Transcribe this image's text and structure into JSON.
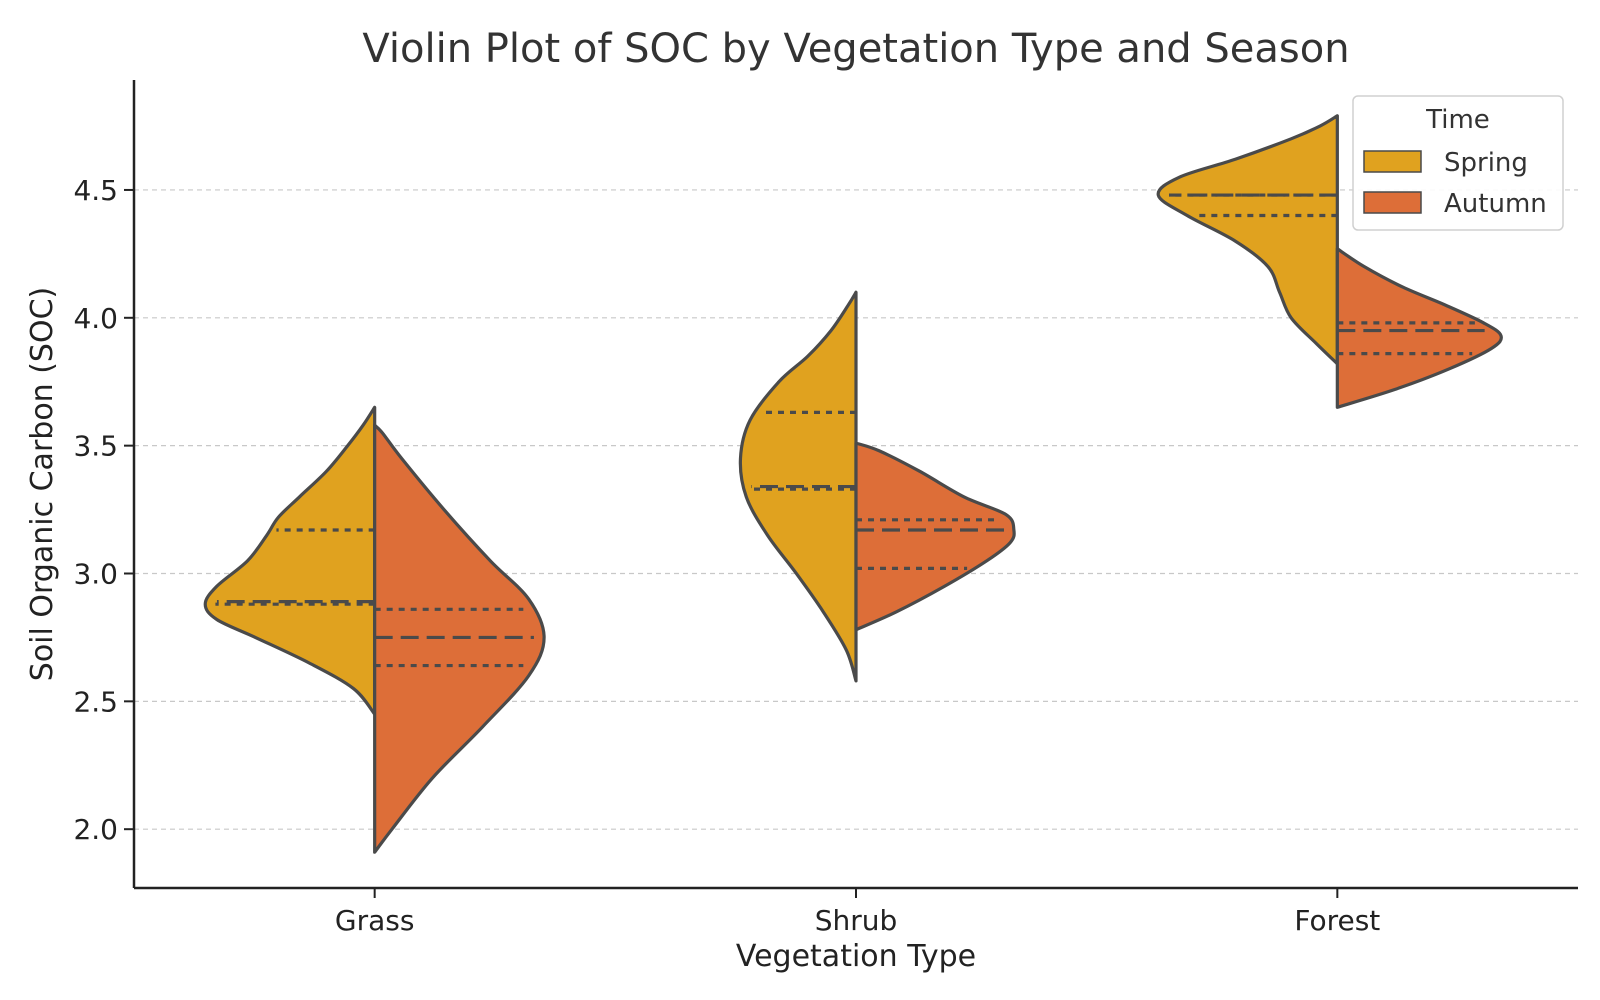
{
  "chart_data": {
    "type": "violin",
    "title": "Violin Plot of SOC by Vegetation Type and Season",
    "xlabel": "Vegetation Type",
    "ylabel": "Soil Organic Carbon (SOC)",
    "ylim": [
      1.77,
      4.93
    ],
    "yticks": [
      2.0,
      2.5,
      3.0,
      3.5,
      4.0,
      4.5
    ],
    "ytick_labels": [
      "2.0",
      "2.5",
      "3.0",
      "3.5",
      "4.0",
      "4.5"
    ],
    "grid": "horizontal dashed",
    "categories": [
      "Grass",
      "Shrub",
      "Forest"
    ],
    "legend": {
      "title": "Time",
      "placement": "top-right"
    },
    "colors": {
      "Spring": "#E0A21F",
      "Autumn": "#DD6E38",
      "outline": "#4a4a4a",
      "grid": "#c8c8c8"
    },
    "series": [
      {
        "name": "Spring",
        "side": "left",
        "violins": [
          {
            "category": "Grass",
            "min": 2.45,
            "max": 3.65,
            "q1": 2.88,
            "median": 2.89,
            "q3": 3.17,
            "density": [
              [
                2.45,
                0.0
              ],
              [
                2.55,
                0.11
              ],
              [
                2.65,
                0.34
              ],
              [
                2.75,
                0.62
              ],
              [
                2.82,
                0.82
              ],
              [
                2.88,
                0.88
              ],
              [
                2.95,
                0.82
              ],
              [
                3.05,
                0.66
              ],
              [
                3.15,
                0.56
              ],
              [
                3.22,
                0.5
              ],
              [
                3.3,
                0.39
              ],
              [
                3.4,
                0.25
              ],
              [
                3.5,
                0.14
              ],
              [
                3.58,
                0.06
              ],
              [
                3.65,
                0.0
              ]
            ]
          },
          {
            "category": "Shrub",
            "min": 2.58,
            "max": 4.1,
            "q1": 3.33,
            "median": 3.34,
            "q3": 3.63,
            "density": [
              [
                2.58,
                0.0
              ],
              [
                2.7,
                0.05
              ],
              [
                2.85,
                0.17
              ],
              [
                3.0,
                0.31
              ],
              [
                3.15,
                0.46
              ],
              [
                3.3,
                0.57
              ],
              [
                3.45,
                0.6
              ],
              [
                3.6,
                0.55
              ],
              [
                3.75,
                0.4
              ],
              [
                3.85,
                0.25
              ],
              [
                3.95,
                0.13
              ],
              [
                4.05,
                0.04
              ],
              [
                4.1,
                0.0
              ]
            ]
          },
          {
            "category": "Forest",
            "min": 3.82,
            "max": 4.79,
            "q1": 4.4,
            "median": 4.48,
            "q3": 4.48,
            "density": [
              [
                3.82,
                0.0
              ],
              [
                3.9,
                0.11
              ],
              [
                4.0,
                0.24
              ],
              [
                4.1,
                0.3
              ],
              [
                4.2,
                0.36
              ],
              [
                4.3,
                0.53
              ],
              [
                4.4,
                0.78
              ],
              [
                4.48,
                0.93
              ],
              [
                4.55,
                0.82
              ],
              [
                4.62,
                0.53
              ],
              [
                4.7,
                0.24
              ],
              [
                4.75,
                0.09
              ],
              [
                4.79,
                0.0
              ]
            ]
          }
        ]
      },
      {
        "name": "Autumn",
        "side": "right",
        "violins": [
          {
            "category": "Grass",
            "min": 1.91,
            "max": 3.58,
            "q1": 2.64,
            "median": 2.75,
            "q3": 2.86,
            "density": [
              [
                1.91,
                0.0
              ],
              [
                2.0,
                0.09
              ],
              [
                2.2,
                0.3
              ],
              [
                2.4,
                0.56
              ],
              [
                2.6,
                0.8
              ],
              [
                2.75,
                0.88
              ],
              [
                2.9,
                0.8
              ],
              [
                3.05,
                0.6
              ],
              [
                3.25,
                0.36
              ],
              [
                3.45,
                0.14
              ],
              [
                3.55,
                0.04
              ],
              [
                3.58,
                0.0
              ]
            ]
          },
          {
            "category": "Shrub",
            "min": 2.78,
            "max": 3.51,
            "q1": 3.02,
            "median": 3.17,
            "q3": 3.21,
            "density": [
              [
                2.78,
                0.0
              ],
              [
                2.85,
                0.21
              ],
              [
                2.95,
                0.46
              ],
              [
                3.05,
                0.68
              ],
              [
                3.12,
                0.8
              ],
              [
                3.17,
                0.82
              ],
              [
                3.23,
                0.78
              ],
              [
                3.3,
                0.56
              ],
              [
                3.4,
                0.33
              ],
              [
                3.48,
                0.12
              ],
              [
                3.51,
                0.0
              ]
            ]
          },
          {
            "category": "Forest",
            "min": 3.65,
            "max": 4.27,
            "q1": 3.86,
            "median": 3.95,
            "q3": 3.98,
            "density": [
              [
                3.65,
                0.0
              ],
              [
                3.72,
                0.3
              ],
              [
                3.8,
                0.58
              ],
              [
                3.88,
                0.8
              ],
              [
                3.93,
                0.85
              ],
              [
                3.98,
                0.76
              ],
              [
                4.05,
                0.56
              ],
              [
                4.12,
                0.34
              ],
              [
                4.2,
                0.14
              ],
              [
                4.27,
                0.0
              ]
            ]
          }
        ]
      }
    ]
  }
}
